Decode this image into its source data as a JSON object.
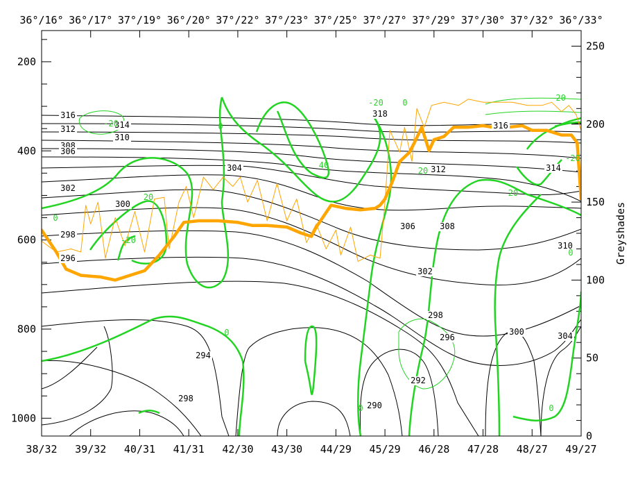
{
  "chart_data": {
    "type": "line",
    "title": "",
    "ylabel_right": "Greyshades",
    "yleft_range": [
      1040,
      130
    ],
    "yleft_ticks": [
      "200",
      "400",
      "600",
      "800",
      "1000"
    ],
    "yright_range": [
      0,
      260
    ],
    "yright_ticks": [
      "0",
      "50",
      "100",
      "150",
      "200",
      "250"
    ],
    "top_ticks": [
      "36°/16°",
      "36°/17°",
      "37°/19°",
      "36°/20°",
      "37°/22°",
      "37°/23°",
      "37°/25°",
      "37°/27°",
      "37°/29°",
      "37°/30°",
      "37°/32°",
      "36°/33°"
    ],
    "bottom_ticks": [
      "38/32",
      "39/32",
      "40/31",
      "41/31",
      "42/30",
      "43/30",
      "44/29",
      "45/29",
      "46/28",
      "47/28",
      "48/27",
      "49/27"
    ],
    "x_range": [
      0,
      11
    ],
    "black_contour_labels": [
      "316",
      "314",
      "312",
      "310",
      "308",
      "306",
      "304",
      "302",
      "300",
      "298",
      "296",
      "318",
      "316",
      "312",
      "314",
      "306",
      "308",
      "310",
      "302",
      "298",
      "296",
      "300",
      "304",
      "294",
      "298",
      "292",
      "290"
    ],
    "green_contour_labels": [
      "-20",
      "0",
      "20",
      "-20",
      "40",
      "-20",
      "0",
      "0",
      "-20",
      "20",
      "0",
      "0",
      "0",
      "-20",
      "0",
      "20"
    ],
    "series": [
      {
        "color": "#ffa500",
        "style": "thick",
        "points": [
          [
            0.0,
            132
          ],
          [
            0.3,
            118
          ],
          [
            0.5,
            107
          ],
          [
            0.8,
            103
          ],
          [
            1.2,
            102
          ],
          [
            1.5,
            100
          ],
          [
            1.8,
            103
          ],
          [
            2.1,
            106
          ],
          [
            2.4,
            116
          ],
          [
            2.7,
            128
          ],
          [
            2.9,
            137
          ],
          [
            3.2,
            138
          ],
          [
            3.6,
            138
          ],
          [
            4.0,
            137
          ],
          [
            4.3,
            135
          ],
          [
            4.6,
            135
          ],
          [
            5.0,
            134
          ],
          [
            5.3,
            130
          ],
          [
            5.5,
            128
          ],
          [
            5.6,
            134
          ],
          [
            5.9,
            148
          ],
          [
            6.2,
            146
          ],
          [
            6.5,
            145
          ],
          [
            6.8,
            146
          ],
          [
            6.9,
            148
          ],
          [
            7.0,
            152
          ],
          [
            7.15,
            163
          ],
          [
            7.3,
            176
          ],
          [
            7.5,
            182
          ],
          [
            7.6,
            188
          ],
          [
            7.75,
            198
          ],
          [
            7.9,
            183
          ],
          [
            8.0,
            190
          ],
          [
            8.2,
            192
          ],
          [
            8.4,
            198
          ],
          [
            8.7,
            198
          ],
          [
            9.0,
            199
          ],
          [
            9.2,
            198
          ],
          [
            9.5,
            198
          ],
          [
            9.8,
            199
          ],
          [
            10.0,
            196
          ],
          [
            10.3,
            196
          ],
          [
            10.6,
            193
          ],
          [
            10.8,
            193
          ],
          [
            10.92,
            188
          ],
          [
            11.0,
            152
          ]
        ]
      },
      {
        "color": "#ffa500",
        "style": "thin",
        "points": [
          [
            0.0,
            125
          ],
          [
            0.3,
            118
          ],
          [
            0.6,
            120
          ],
          [
            0.8,
            118
          ],
          [
            0.9,
            148
          ],
          [
            1.0,
            136
          ],
          [
            1.15,
            150
          ],
          [
            1.3,
            114
          ],
          [
            1.5,
            140
          ],
          [
            1.7,
            122
          ],
          [
            1.9,
            144
          ],
          [
            2.1,
            118
          ],
          [
            2.3,
            152
          ],
          [
            2.5,
            153
          ],
          [
            2.6,
            120
          ],
          [
            2.8,
            150
          ],
          [
            2.95,
            160
          ],
          [
            3.1,
            140
          ],
          [
            3.3,
            166
          ],
          [
            3.5,
            158
          ],
          [
            3.7,
            166
          ],
          [
            3.9,
            160
          ],
          [
            4.05,
            166
          ],
          [
            4.2,
            150
          ],
          [
            4.4,
            164
          ],
          [
            4.6,
            138
          ],
          [
            4.8,
            162
          ],
          [
            5.0,
            138
          ],
          [
            5.2,
            152
          ],
          [
            5.4,
            124
          ],
          [
            5.6,
            136
          ],
          [
            5.8,
            120
          ],
          [
            6.0,
            132
          ],
          [
            6.1,
            116
          ],
          [
            6.3,
            134
          ],
          [
            6.45,
            112
          ],
          [
            6.7,
            116
          ],
          [
            6.9,
            114
          ],
          [
            7.0,
            150
          ],
          [
            7.1,
            196
          ],
          [
            7.3,
            182
          ],
          [
            7.4,
            198
          ],
          [
            7.55,
            176
          ],
          [
            7.65,
            210
          ],
          [
            7.8,
            198
          ],
          [
            7.95,
            212
          ],
          [
            8.2,
            214
          ],
          [
            8.5,
            212
          ],
          [
            8.7,
            216
          ],
          [
            9.0,
            214
          ],
          [
            9.3,
            214
          ],
          [
            9.6,
            214
          ],
          [
            9.9,
            212
          ],
          [
            10.2,
            212
          ],
          [
            10.4,
            214
          ],
          [
            10.6,
            208
          ],
          [
            10.75,
            212
          ],
          [
            10.9,
            206
          ],
          [
            11.0,
            196
          ]
        ]
      }
    ]
  }
}
